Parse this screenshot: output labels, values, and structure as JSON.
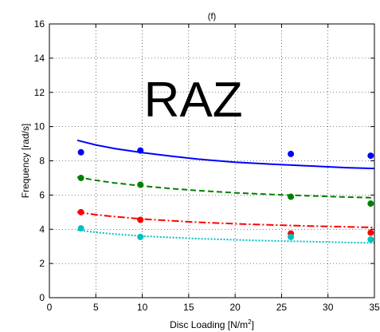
{
  "chart_data": {
    "type": "scatter",
    "title": "(f)",
    "annotation": "RAZ",
    "xlabel": "Disc Loading [N/m",
    "xlabel_sup": "2",
    "xlabel_end": "]",
    "ylabel": "Frequency [rad/s]",
    "xlim": [
      0,
      35
    ],
    "ylim": [
      0,
      16
    ],
    "x_ticks": [
      0,
      5,
      10,
      15,
      20,
      25,
      30,
      35
    ],
    "y_ticks": [
      0,
      2,
      4,
      6,
      8,
      10,
      12,
      14,
      16
    ],
    "grid": "dotted",
    "series": [
      {
        "color": "#0000ff",
        "line_style": "solid",
        "points": {
          "x": [
            3.4,
            9.8,
            26.0,
            34.6
          ],
          "y": [
            8.5,
            8.6,
            8.4,
            8.3
          ]
        },
        "fit": {
          "x": [
            3.0,
            5,
            7,
            10,
            13,
            16,
            20,
            24,
            28,
            32,
            35
          ],
          "y": [
            9.2,
            8.93,
            8.72,
            8.48,
            8.28,
            8.1,
            7.92,
            7.8,
            7.7,
            7.6,
            7.55
          ]
        }
      },
      {
        "color": "#008000",
        "line_style": "dashed",
        "points": {
          "x": [
            3.4,
            9.8,
            26.0,
            34.6
          ],
          "y": [
            7.0,
            6.6,
            5.9,
            5.5
          ]
        },
        "fit": {
          "x": [
            3.0,
            5,
            7,
            10,
            13,
            16,
            20,
            24,
            28,
            32,
            35
          ],
          "y": [
            7.05,
            6.86,
            6.71,
            6.53,
            6.38,
            6.26,
            6.13,
            6.03,
            5.95,
            5.88,
            5.84
          ]
        }
      },
      {
        "color": "#ff0000",
        "line_style": "dash-dot",
        "points": {
          "x": [
            3.4,
            9.8,
            26.0,
            34.6
          ],
          "y": [
            5.0,
            4.55,
            3.75,
            3.8
          ]
        },
        "fit": {
          "x": [
            3.0,
            5,
            7,
            10,
            13,
            16,
            20,
            24,
            28,
            32,
            35
          ],
          "y": [
            5.0,
            4.85,
            4.74,
            4.6,
            4.5,
            4.41,
            4.32,
            4.25,
            4.19,
            4.14,
            4.1
          ]
        }
      },
      {
        "color": "#00bfbf",
        "line_style": "dotted",
        "points": {
          "x": [
            3.4,
            9.8,
            26.0,
            34.6
          ],
          "y": [
            4.05,
            3.55,
            3.55,
            3.4
          ]
        },
        "fit": {
          "x": [
            3.0,
            5,
            7,
            10,
            13,
            16,
            20,
            24,
            28,
            32,
            35
          ],
          "y": [
            3.95,
            3.82,
            3.72,
            3.6,
            3.52,
            3.45,
            3.38,
            3.32,
            3.28,
            3.23,
            3.2
          ]
        }
      }
    ]
  }
}
